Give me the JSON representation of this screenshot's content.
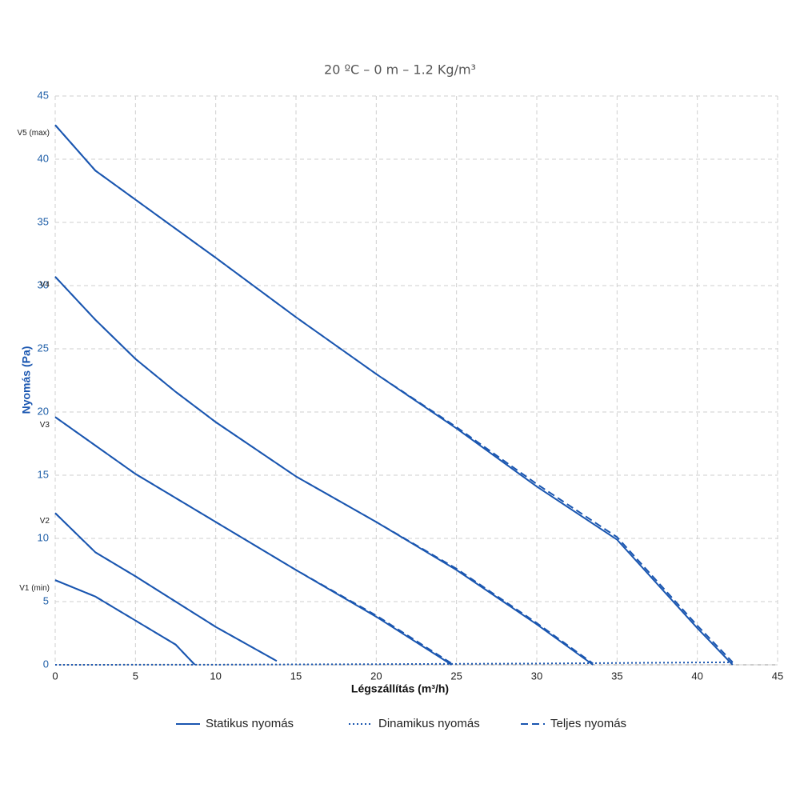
{
  "chart_data": {
    "type": "line",
    "title": "20 ºC – 0 m – 1.2 Kg/m³",
    "x_label": "Légszállítás (m³/h)",
    "y_label": "Nyomás (Pa)",
    "xlim": [
      0,
      45
    ],
    "xticks": [
      0,
      5,
      10,
      15,
      20,
      25,
      30,
      35,
      40,
      45
    ],
    "ylim": [
      0,
      45
    ],
    "yticks": [
      0,
      5,
      10,
      15,
      20,
      25,
      30,
      35,
      40,
      45
    ],
    "grid": true,
    "color": "#1a56b0",
    "legend": [
      {
        "name": "Statikus nyomás",
        "dash": "solid"
      },
      {
        "name": "Dinamikus nyomás",
        "dash": "dotted"
      },
      {
        "name": "Teljes nyomás",
        "dash": "dashed"
      }
    ],
    "series": [
      {
        "name": "V1 (min)",
        "x": [
          0,
          2.5,
          5,
          7.5,
          8.7
        ],
        "static": [
          6.7,
          5.4,
          3.5,
          1.6,
          0
        ],
        "total": [
          6.7,
          5.4,
          3.5,
          1.6,
          0
        ]
      },
      {
        "name": "V2",
        "x": [
          0,
          2.5,
          5,
          7.5,
          10,
          13.8
        ],
        "static": [
          12,
          8.9,
          7.0,
          5.0,
          3.0,
          0.3
        ],
        "total": [
          12,
          8.9,
          7.0,
          5.0,
          3.0,
          0.3
        ]
      },
      {
        "name": "V3",
        "x": [
          0,
          5,
          10,
          15,
          20,
          24.7
        ],
        "static": [
          19.6,
          15.1,
          11.3,
          7.5,
          3.8,
          0
        ],
        "total": [
          19.6,
          15.1,
          11.3,
          7.5,
          3.9,
          0.1
        ]
      },
      {
        "name": "V4",
        "x": [
          0,
          2.5,
          5,
          7.5,
          10,
          15,
          20,
          25,
          30,
          33.5
        ],
        "static": [
          30.7,
          27.3,
          24.2,
          21.6,
          19.2,
          14.9,
          11.3,
          7.5,
          3.2,
          0
        ],
        "total": [
          30.7,
          27.3,
          24.2,
          21.6,
          19.2,
          14.9,
          11.3,
          7.6,
          3.3,
          0.1
        ]
      },
      {
        "name": "V5 (max)",
        "x": [
          0,
          2.5,
          5,
          10,
          15,
          20,
          25,
          30,
          35,
          40,
          42.2
        ],
        "static": [
          42.7,
          39.1,
          36.8,
          32.2,
          27.5,
          23.0,
          18.7,
          14.1,
          9.9,
          2.9,
          0
        ],
        "total": [
          42.7,
          39.1,
          36.8,
          32.2,
          27.5,
          23.0,
          18.8,
          14.3,
          10.1,
          3.1,
          0.2
        ]
      }
    ],
    "dynamic": {
      "x": [
        0,
        10,
        20,
        30,
        42.2
      ],
      "values": [
        0,
        0.01,
        0.05,
        0.1,
        0.2
      ]
    }
  }
}
